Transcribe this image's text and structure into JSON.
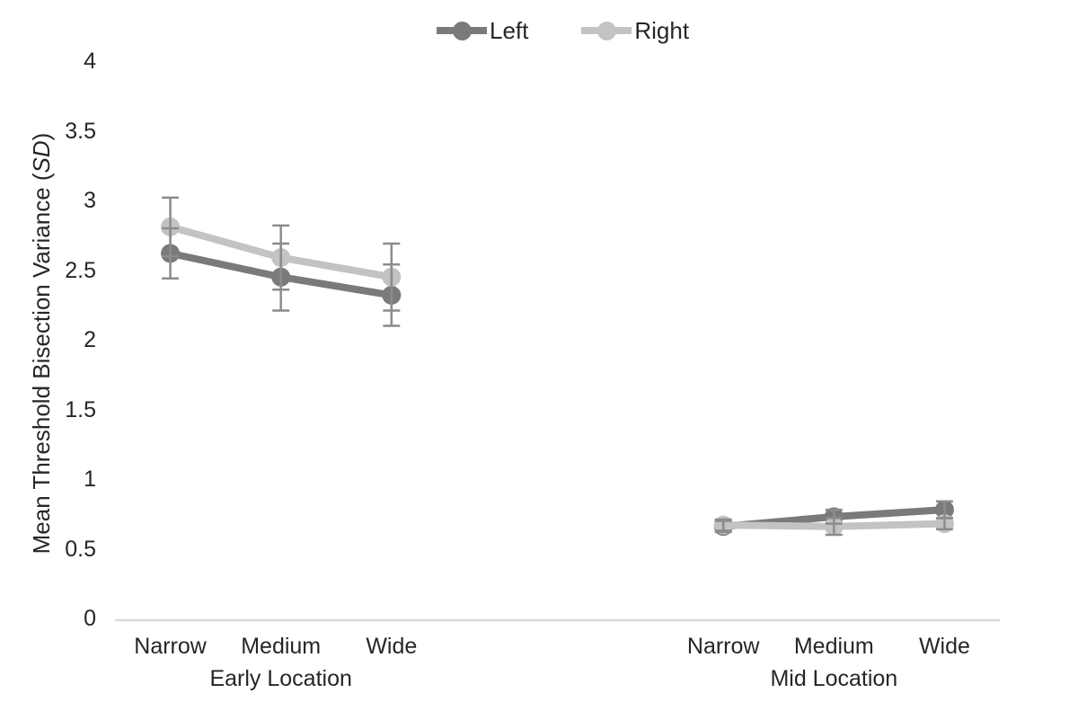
{
  "page": {
    "background": "#ffffff"
  },
  "legend": {
    "position": "top-center",
    "items": [
      {
        "label": "Left",
        "color": "#7a7a7a",
        "marker": "circle-on-line"
      },
      {
        "label": "Right",
        "color": "#c3c3c3",
        "marker": "circle-on-line"
      }
    ]
  },
  "chart_data": {
    "type": "line",
    "title": "",
    "ylabel": "Mean Threshold Bisection Variance (SD)",
    "ylabel_prefix": "Mean Threshold Bisection Variance (",
    "ylabel_italic": "SD",
    "ylabel_suffix": ")",
    "xlabel": "",
    "ylim": [
      0,
      4
    ],
    "yticks": [
      0,
      0.5,
      1,
      1.5,
      2,
      2.5,
      3,
      3.5,
      4
    ],
    "ytick_labels": [
      "0",
      "0.5",
      "1",
      "1.5",
      "2",
      "2.5",
      "3",
      "3.5",
      "4"
    ],
    "grid": false,
    "legend_position": "top",
    "groups": [
      {
        "label": "Early Location",
        "categories": [
          "Narrow",
          "Medium",
          "Wide"
        ]
      },
      {
        "label": "Mid Location",
        "categories": [
          "Narrow",
          "Medium",
          "Wide"
        ]
      }
    ],
    "series": [
      {
        "name": "Left",
        "color": "#7a7a7a",
        "values": [
          [
            2.62,
            2.45,
            2.32
          ],
          [
            0.66,
            0.73,
            0.78
          ]
        ],
        "errors": [
          [
            0.18,
            0.24,
            0.22
          ],
          [
            0.04,
            0.05,
            0.06
          ]
        ]
      },
      {
        "name": "Right",
        "color": "#c3c3c3",
        "values": [
          [
            2.81,
            2.59,
            2.45
          ],
          [
            0.67,
            0.66,
            0.68
          ]
        ],
        "errors": [
          [
            0.21,
            0.23,
            0.24
          ],
          [
            0.04,
            0.06,
            0.04
          ]
        ]
      }
    ],
    "error_bar_color": "#8c8c8c",
    "axis_line_color": "#d9d9d9",
    "text_color": "#262626"
  }
}
